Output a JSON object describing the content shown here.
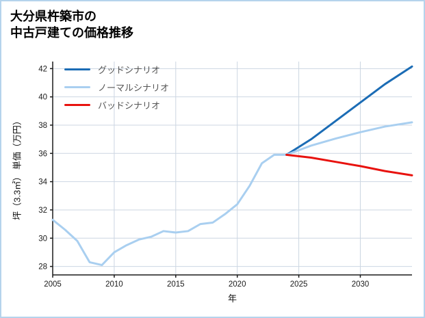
{
  "title": {
    "line1": "大分県杵築市の",
    "line2": "中古戸建ての価格推移"
  },
  "chart_data": {
    "type": "line",
    "title": "大分県杵築市の中古戸建ての価格推移",
    "xlabel": "年",
    "ylabel": "坪（3.3㎡） 単価（万円）",
    "xlim": [
      2005,
      2034.2
    ],
    "ylim": [
      27.4,
      42.5
    ],
    "xticks": [
      2005,
      2010,
      2015,
      2020,
      2025,
      2030
    ],
    "yticks": [
      28,
      30,
      32,
      34,
      36,
      38,
      40,
      42
    ],
    "grid": true,
    "legend_position": "upper left",
    "colors": {
      "grid": "#ccd6e2",
      "axis": "#1a1a1a",
      "tick_label": "#1a1a1a",
      "frame": "#b5d3ec"
    },
    "series": [
      {
        "name": "",
        "color": "#a9cff0",
        "width": 3,
        "legend": false,
        "x": [
          2005,
          2006,
          2007,
          2008,
          2009,
          2010,
          2011,
          2012,
          2013,
          2014,
          2015,
          2016,
          2017,
          2018,
          2019,
          2020,
          2021,
          2022,
          2023,
          2024
        ],
        "y": [
          31.3,
          30.6,
          29.8,
          28.3,
          28.1,
          29.0,
          29.5,
          29.9,
          30.1,
          30.5,
          30.4,
          30.5,
          31.0,
          31.1,
          31.7,
          32.4,
          33.7,
          35.3,
          35.9,
          35.9
        ]
      },
      {
        "name": "グッドシナリオ",
        "color": "#1b6cb5",
        "width": 3,
        "legend": true,
        "x": [
          2024,
          2026,
          2028,
          2030,
          2032,
          2034.2
        ],
        "y": [
          35.9,
          37.0,
          38.3,
          39.6,
          40.9,
          42.15
        ]
      },
      {
        "name": "ノーマルシナリオ",
        "color": "#a9cff0",
        "width": 3,
        "legend": true,
        "x": [
          2024,
          2026,
          2028,
          2030,
          2032,
          2034.2
        ],
        "y": [
          35.9,
          36.55,
          37.05,
          37.5,
          37.9,
          38.2
        ]
      },
      {
        "name": "バッドシナリオ",
        "color": "#e8120e",
        "width": 3,
        "legend": true,
        "x": [
          2024,
          2026,
          2028,
          2030,
          2032,
          2034.2
        ],
        "y": [
          35.9,
          35.7,
          35.4,
          35.1,
          34.75,
          34.45
        ]
      }
    ]
  }
}
